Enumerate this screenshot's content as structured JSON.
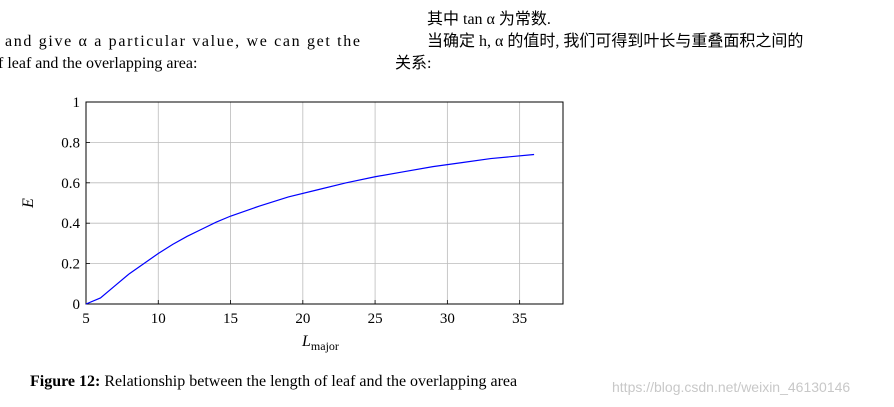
{
  "left_text": [
    "and give α a particular value, we can get the",
    "f leaf and the overlapping area:"
  ],
  "right_text": [
    "其中 tan α 为常数.",
    "当确定 h, α 的值时, 我们可得到叶长与重叠面积之间的",
    "关系:"
  ],
  "chart_data": {
    "type": "line",
    "x": [
      5,
      6,
      7,
      8,
      9,
      10,
      11,
      12,
      13,
      14,
      15,
      17,
      19,
      21,
      23,
      25,
      27,
      29,
      31,
      33,
      36
    ],
    "values": [
      0,
      0.03,
      0.09,
      0.15,
      0.2,
      0.25,
      0.295,
      0.335,
      0.37,
      0.405,
      0.435,
      0.485,
      0.53,
      0.565,
      0.6,
      0.63,
      0.655,
      0.68,
      0.7,
      0.72,
      0.74
    ],
    "color": "#0000ff",
    "xlim": [
      5,
      38
    ],
    "ylim": [
      0,
      1
    ],
    "xticks": [
      5,
      10,
      15,
      20,
      25,
      30,
      35
    ],
    "yticks": [
      0,
      0.2,
      0.4,
      0.6,
      0.8,
      1
    ],
    "grid": true,
    "xlabel": "L",
    "xlabel_subscript": "major",
    "ylabel": "E"
  },
  "caption": {
    "label": "Figure 12:",
    "text": "Relationship between the length of leaf and the overlapping area"
  },
  "watermark": "https://blog.csdn.net/weixin_46130146"
}
